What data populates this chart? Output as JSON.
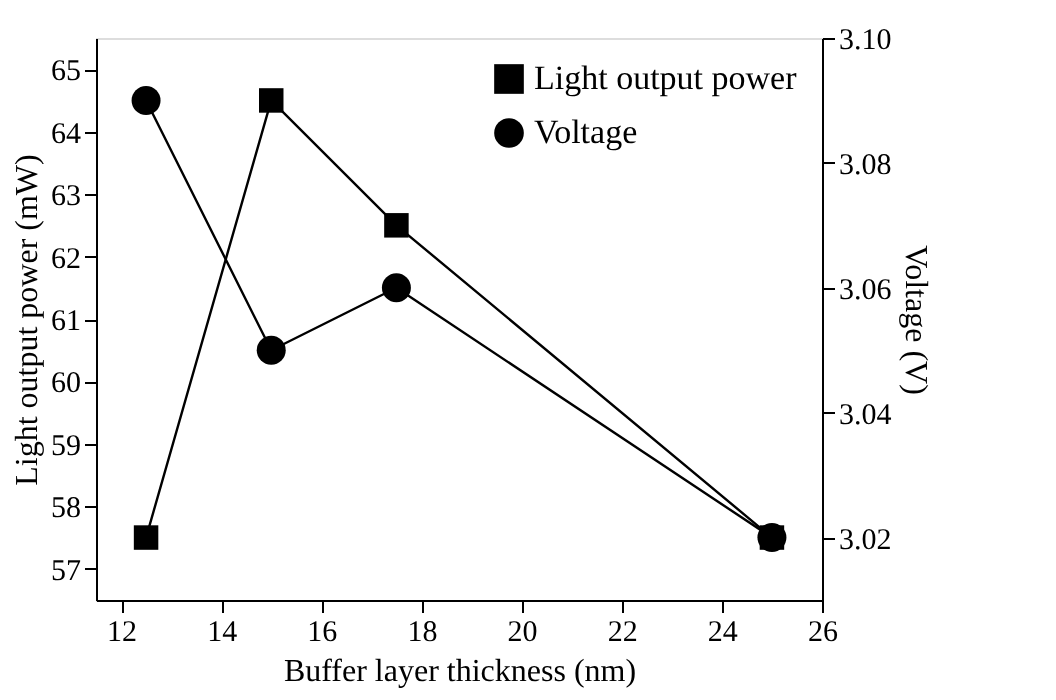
{
  "chart_data": {
    "type": "line",
    "xlabel": "Buffer layer thickness (nm)",
    "ylabel": "Light output power (mW)",
    "y2label": "Voltage (V)",
    "x": [
      12.5,
      15,
      17.5,
      25
    ],
    "series": [
      {
        "name": "Light output power",
        "color": "#000000",
        "marker": "square",
        "values": [
          57.5,
          64.5,
          62.5,
          57.5
        ]
      },
      {
        "name": "Voltage",
        "color": "#000000",
        "marker": "circle",
        "axis": "y2",
        "values": [
          3.09,
          3.05,
          3.06,
          3.02
        ]
      }
    ],
    "xlim": [
      11.5,
      26
    ],
    "xticks": [
      12,
      14,
      16,
      18,
      20,
      22,
      24,
      26
    ],
    "ylim": [
      56.5,
      65.5
    ],
    "yticks": [
      57,
      58,
      59,
      60,
      61,
      62,
      63,
      64,
      65
    ],
    "y2lim": [
      3.01,
      3.1
    ],
    "y2ticks": [
      3.02,
      3.04,
      3.06,
      3.08,
      {
        "value": 3.1,
        "label": "3.10"
      }
    ],
    "legend": "top right",
    "grid": false,
    "line_style": "solid"
  }
}
